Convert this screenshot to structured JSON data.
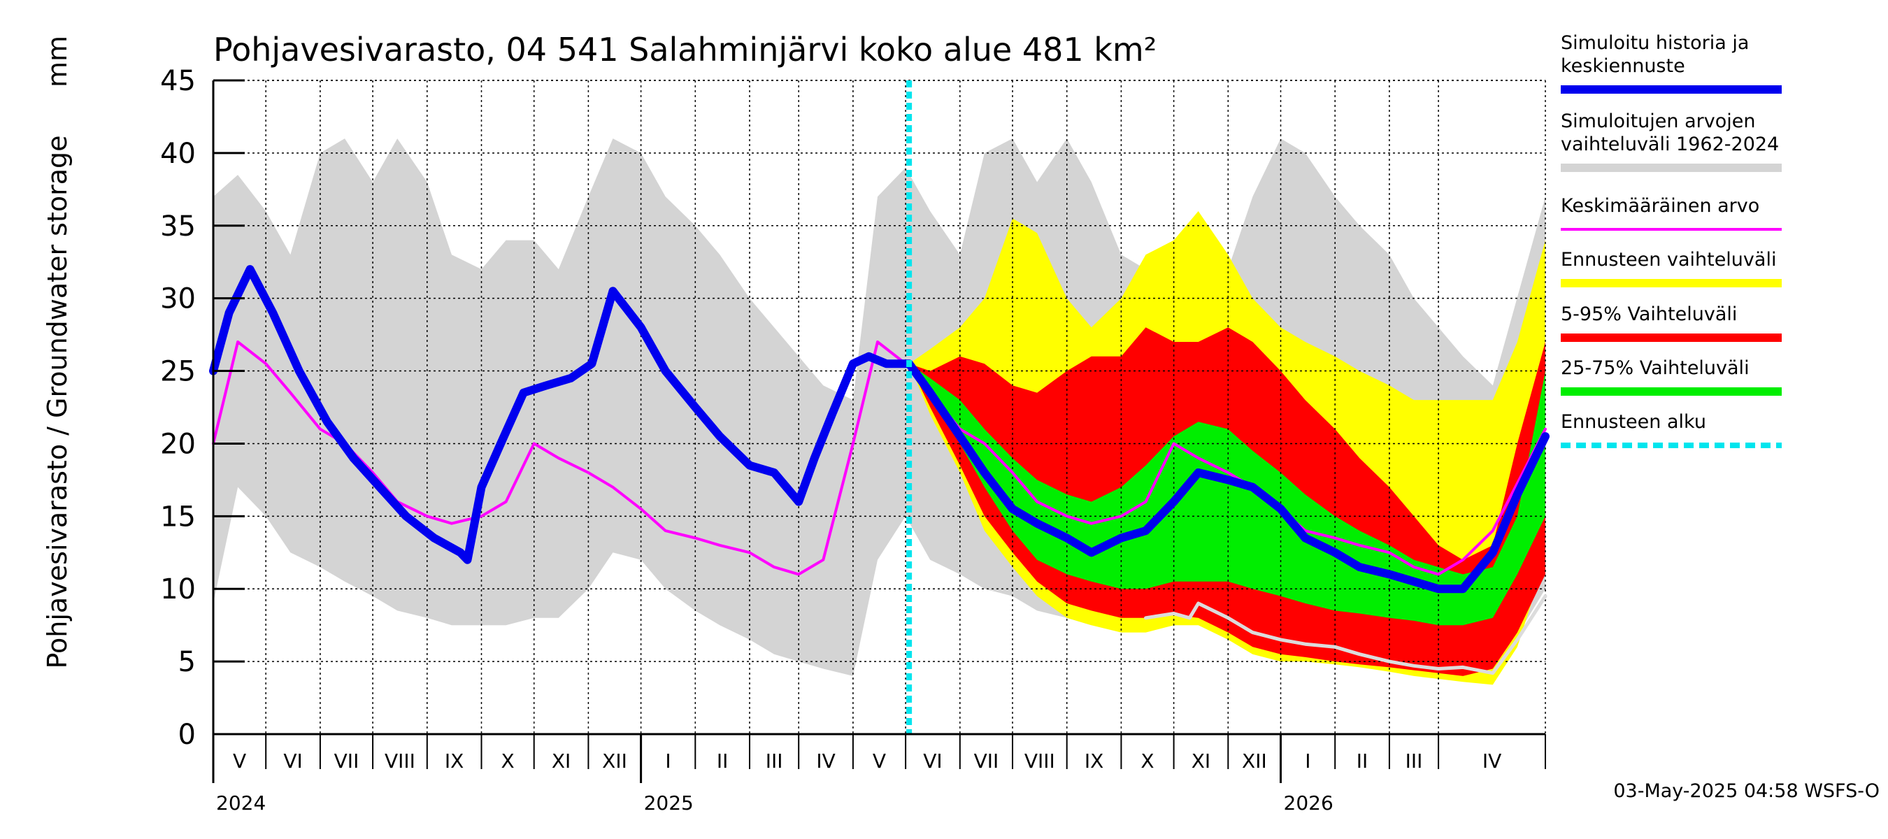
{
  "chart_data": {
    "type": "line",
    "title": "Pohjavesivarasto, 04 541 Salahminjärvi koko alue 481 km²",
    "ylabel": "Pohjavesivarasto / Groundwater storage",
    "yunit": "mm",
    "ylim": [
      0,
      45
    ],
    "yticks": [
      0,
      5,
      10,
      15,
      20,
      25,
      30,
      35,
      40,
      45
    ],
    "xlim": [
      "2024-04-01",
      "2026-05-01"
    ],
    "x_month_labels": [
      {
        "label": "V",
        "start": "2024-04-01"
      },
      {
        "label": "VI",
        "start": "2024-05-01"
      },
      {
        "label": "VII",
        "start": "2024-06-01"
      },
      {
        "label": "VIII",
        "start": "2024-07-01"
      },
      {
        "label": "IX",
        "start": "2024-08-01"
      },
      {
        "label": "X",
        "start": "2024-09-01"
      },
      {
        "label": "XI",
        "start": "2024-10-01"
      },
      {
        "label": "XII",
        "start": "2024-11-01"
      },
      {
        "label": "I",
        "start": "2024-12-01"
      },
      {
        "label": "II",
        "start": "2025-01-01"
      },
      {
        "label": "III",
        "start": "2025-02-01"
      },
      {
        "label": "IV",
        "start": "2025-03-01"
      },
      {
        "label": "V",
        "start": "2025-04-01"
      },
      {
        "label": "VI",
        "start": "2025-05-01"
      },
      {
        "label": "VII",
        "start": "2025-06-01"
      },
      {
        "label": "VIII",
        "start": "2025-07-01"
      },
      {
        "label": "IX",
        "start": "2025-08-01"
      },
      {
        "label": "X",
        "start": "2025-09-01"
      },
      {
        "label": "XI",
        "start": "2025-10-01"
      },
      {
        "label": "XII",
        "start": "2025-11-01"
      },
      {
        "label": "I",
        "start": "2025-12-01"
      },
      {
        "label": "II",
        "start": "2026-01-01"
      },
      {
        "label": "III",
        "start": "2026-02-01"
      },
      {
        "label": "IV",
        "start": "2026-03-01"
      }
    ],
    "x_year_labels": [
      {
        "label": "2024",
        "at": "2024-04-01"
      },
      {
        "label": "2025",
        "at": "2024-12-01"
      },
      {
        "label": "2026",
        "at": "2025-12-01"
      }
    ],
    "forecast_start": "2025-05-03",
    "grid": true,
    "legend_position": "right",
    "legend": [
      {
        "label": "Simuloitu historia ja keskiennuste",
        "lines": [
          "Simuloitu historia ja",
          "keskiennuste"
        ],
        "color": "#0000ee",
        "style": "thick"
      },
      {
        "label": "Simuloitujen arvojen vaihteluväli 1962-2024",
        "lines": [
          "Simuloitujen arvojen",
          "vaihteluväli 1962-2024"
        ],
        "color": "#d4d4d4",
        "style": "band"
      },
      {
        "label": "Keskimääräinen arvo",
        "lines": [
          "Keskimääräinen arvo"
        ],
        "color": "#ff00ff",
        "style": "thin"
      },
      {
        "label": "Ennusteen vaihteluväli",
        "lines": [
          "Ennusteen vaihteluväli"
        ],
        "color": "#ffff00",
        "style": "band"
      },
      {
        "label": "5-95% Vaihteluväli",
        "lines": [
          "5-95% Vaihteluväli"
        ],
        "color": "#ff0000",
        "style": "band"
      },
      {
        "label": "25-75% Vaihteluväli",
        "lines": [
          "25-75% Vaihteluväli"
        ],
        "color": "#00ee00",
        "style": "band"
      },
      {
        "label": "Ennusteen alku",
        "lines": [
          "Ennusteen alku"
        ],
        "color": "#00e5ee",
        "style": "dashed"
      }
    ],
    "series": [
      {
        "name": "Simuloitujen arvojen vaihteluväli 1962-2024",
        "kind": "band",
        "color": "#d4d4d4",
        "x": [
          "2024-04-01",
          "2024-04-15",
          "2024-05-01",
          "2024-05-15",
          "2024-06-01",
          "2024-06-15",
          "2024-07-01",
          "2024-07-15",
          "2024-08-01",
          "2024-08-15",
          "2024-09-01",
          "2024-09-15",
          "2024-10-01",
          "2024-10-15",
          "2024-11-01",
          "2024-11-15",
          "2024-12-01",
          "2024-12-15",
          "2025-01-01",
          "2025-01-15",
          "2025-02-01",
          "2025-02-15",
          "2025-03-01",
          "2025-03-15",
          "2025-04-01",
          "2025-04-15",
          "2025-05-01",
          "2025-05-15",
          "2025-06-01",
          "2025-06-15",
          "2025-07-01",
          "2025-07-15",
          "2025-08-01",
          "2025-08-15",
          "2025-09-01",
          "2025-09-15",
          "2025-10-01",
          "2025-10-15",
          "2025-11-01",
          "2025-11-15",
          "2025-12-01",
          "2025-12-15",
          "2026-01-01",
          "2026-01-15",
          "2026-02-01",
          "2026-02-15",
          "2026-03-01",
          "2026-03-15",
          "2026-04-01",
          "2026-05-01"
        ],
        "lower": [
          9.0,
          17.0,
          15.0,
          12.5,
          11.5,
          10.5,
          9.5,
          8.5,
          8.0,
          7.5,
          7.5,
          7.5,
          8.0,
          8.0,
          10.0,
          12.5,
          12.0,
          10.0,
          8.5,
          7.5,
          6.5,
          5.5,
          5.0,
          4.5,
          4.0,
          12.0,
          15.0,
          12.0,
          11.0,
          10.0,
          9.5,
          8.5,
          8.0,
          7.5,
          7.5,
          7.5,
          8.0,
          8.0,
          10.0,
          12.5,
          12.0,
          10.0,
          8.5,
          7.5,
          6.5,
          5.5,
          5.0,
          4.5,
          4.0,
          10.0
        ],
        "upper": [
          37.0,
          38.5,
          36.0,
          33.0,
          40.0,
          41.0,
          38.0,
          41.0,
          38.0,
          33.0,
          32.0,
          34.0,
          34.0,
          32.0,
          37.0,
          41.0,
          40.0,
          37.0,
          35.0,
          33.0,
          30.0,
          28.0,
          26.0,
          24.0,
          23.0,
          37.0,
          39.0,
          36.0,
          33.0,
          40.0,
          41.0,
          38.0,
          41.0,
          38.0,
          33.0,
          32.0,
          34.0,
          34.0,
          32.0,
          37.0,
          41.0,
          40.0,
          37.0,
          35.0,
          33.0,
          30.0,
          28.0,
          26.0,
          24.0,
          37.0
        ]
      },
      {
        "name": "Ennusteen vaihteluväli",
        "kind": "band",
        "color": "#ffff00",
        "x": [
          "2025-05-03",
          "2025-05-15",
          "2025-06-01",
          "2025-06-15",
          "2025-07-01",
          "2025-07-15",
          "2025-08-01",
          "2025-08-15",
          "2025-09-01",
          "2025-09-15",
          "2025-10-01",
          "2025-10-15",
          "2025-11-01",
          "2025-11-15",
          "2025-12-01",
          "2025-12-15",
          "2026-01-01",
          "2026-01-15",
          "2026-02-01",
          "2026-02-15",
          "2026-03-01",
          "2026-03-15",
          "2026-04-01",
          "2026-04-15",
          "2026-05-01"
        ],
        "lower": [
          25.5,
          22.0,
          18.0,
          14.0,
          11.5,
          9.5,
          8.0,
          7.5,
          7.0,
          7.0,
          7.5,
          7.5,
          6.5,
          5.5,
          5.0,
          5.0,
          4.8,
          4.6,
          4.3,
          4.0,
          3.8,
          3.6,
          3.4,
          6.0,
          12.0
        ],
        "upper": [
          25.5,
          26.5,
          28.0,
          30.0,
          35.5,
          34.5,
          30.0,
          28.0,
          30.0,
          33.0,
          34.0,
          36.0,
          33.0,
          30.0,
          28.0,
          27.0,
          26.0,
          25.0,
          24.0,
          23.0,
          23.0,
          23.0,
          23.0,
          27.0,
          34.0
        ]
      },
      {
        "name": "5-95% Vaihteluväli",
        "kind": "band",
        "color": "#ff0000",
        "x": [
          "2025-05-03",
          "2025-05-15",
          "2025-06-01",
          "2025-06-15",
          "2025-07-01",
          "2025-07-15",
          "2025-08-01",
          "2025-08-15",
          "2025-09-01",
          "2025-09-15",
          "2025-10-01",
          "2025-10-15",
          "2025-11-01",
          "2025-11-15",
          "2025-12-01",
          "2025-12-15",
          "2026-01-01",
          "2026-01-15",
          "2026-02-01",
          "2026-02-15",
          "2026-03-01",
          "2026-03-15",
          "2026-04-01",
          "2026-04-15",
          "2026-05-01"
        ],
        "lower": [
          25.5,
          22.5,
          18.5,
          15.0,
          12.5,
          10.5,
          9.0,
          8.5,
          8.0,
          8.0,
          8.2,
          8.0,
          7.0,
          6.0,
          5.5,
          5.3,
          5.0,
          4.8,
          4.6,
          4.4,
          4.2,
          4.0,
          4.5,
          7.0,
          11.0
        ],
        "upper": [
          25.5,
          25.0,
          26.0,
          25.5,
          24.0,
          23.5,
          25.0,
          26.0,
          26.0,
          28.0,
          27.0,
          27.0,
          28.0,
          27.0,
          25.0,
          23.0,
          21.0,
          19.0,
          17.0,
          15.0,
          13.0,
          12.0,
          13.0,
          20.0,
          27.0
        ]
      },
      {
        "name": "25-75% Vaihteluväli",
        "kind": "band",
        "color": "#00ee00",
        "x": [
          "2025-05-03",
          "2025-05-15",
          "2025-06-01",
          "2025-06-15",
          "2025-07-01",
          "2025-07-15",
          "2025-08-01",
          "2025-08-15",
          "2025-09-01",
          "2025-09-15",
          "2025-10-01",
          "2025-10-15",
          "2025-11-01",
          "2025-11-15",
          "2025-12-01",
          "2025-12-15",
          "2026-01-01",
          "2026-01-15",
          "2026-02-01",
          "2026-02-15",
          "2026-03-01",
          "2026-03-15",
          "2026-04-01",
          "2026-04-15",
          "2026-05-01"
        ],
        "lower": [
          25.5,
          23.0,
          20.0,
          17.0,
          14.0,
          12.0,
          11.0,
          10.5,
          10.0,
          10.0,
          10.5,
          10.5,
          10.5,
          10.0,
          9.5,
          9.0,
          8.5,
          8.3,
          8.0,
          7.8,
          7.5,
          7.5,
          8.0,
          11.0,
          15.0
        ],
        "upper": [
          25.5,
          24.5,
          23.0,
          21.0,
          19.0,
          17.5,
          16.5,
          16.0,
          17.0,
          18.5,
          20.5,
          21.5,
          21.0,
          19.5,
          18.0,
          16.5,
          15.0,
          14.0,
          13.0,
          12.0,
          11.5,
          11.0,
          11.5,
          15.0,
          25.0
        ]
      },
      {
        "name": "Keskimääräinen arvo",
        "kind": "line",
        "color": "#ff00ff",
        "x": [
          "2024-04-01",
          "2024-04-15",
          "2024-05-01",
          "2024-05-15",
          "2024-06-01",
          "2024-06-15",
          "2024-07-01",
          "2024-07-15",
          "2024-08-01",
          "2024-08-15",
          "2024-09-01",
          "2024-09-15",
          "2024-10-01",
          "2024-10-15",
          "2024-11-01",
          "2024-11-15",
          "2024-12-01",
          "2024-12-15",
          "2025-01-01",
          "2025-01-15",
          "2025-02-01",
          "2025-02-15",
          "2025-03-01",
          "2025-03-15",
          "2025-04-01",
          "2025-04-15",
          "2025-05-01",
          "2025-05-15",
          "2025-06-01",
          "2025-06-15",
          "2025-07-01",
          "2025-07-15",
          "2025-08-01",
          "2025-08-15",
          "2025-09-01",
          "2025-09-15",
          "2025-10-01",
          "2025-10-15",
          "2025-11-01",
          "2025-11-15",
          "2025-12-01",
          "2025-12-15",
          "2026-01-01",
          "2026-01-15",
          "2026-02-01",
          "2026-02-15",
          "2026-03-01",
          "2026-03-15",
          "2026-04-01",
          "2026-05-01"
        ],
        "y": [
          20.0,
          27.0,
          25.5,
          23.5,
          21.0,
          20.0,
          18.0,
          16.0,
          15.0,
          14.5,
          15.0,
          16.0,
          20.0,
          19.0,
          18.0,
          17.0,
          15.5,
          14.0,
          13.5,
          13.0,
          12.5,
          11.5,
          11.0,
          12.0,
          20.0,
          27.0,
          25.5,
          23.5,
          21.0,
          20.0,
          18.0,
          16.0,
          15.0,
          14.5,
          15.0,
          16.0,
          20.0,
          19.0,
          18.0,
          17.0,
          15.5,
          14.0,
          13.5,
          13.0,
          12.5,
          11.5,
          11.0,
          12.0,
          14.0,
          21.0
        ]
      },
      {
        "name": "Simuloitu historia ja keskiennuste",
        "kind": "line",
        "color": "#0000ee",
        "x": [
          "2024-04-01",
          "2024-04-10",
          "2024-04-22",
          "2024-05-05",
          "2024-05-20",
          "2024-06-05",
          "2024-06-20",
          "2024-07-05",
          "2024-07-20",
          "2024-08-05",
          "2024-08-20",
          "2024-08-24",
          "2024-09-01",
          "2024-09-12",
          "2024-09-25",
          "2024-10-08",
          "2024-10-22",
          "2024-11-03",
          "2024-11-15",
          "2024-12-01",
          "2024-12-15",
          "2025-01-01",
          "2025-01-15",
          "2025-02-01",
          "2025-02-15",
          "2025-03-01",
          "2025-03-10",
          "2025-03-20",
          "2025-04-01",
          "2025-04-10",
          "2025-04-20",
          "2025-05-03",
          "2025-05-15",
          "2025-06-01",
          "2025-06-15",
          "2025-07-01",
          "2025-07-15",
          "2025-08-01",
          "2025-08-15",
          "2025-09-01",
          "2025-09-15",
          "2025-10-01",
          "2025-10-15",
          "2025-11-01",
          "2025-11-15",
          "2025-12-01",
          "2025-12-15",
          "2026-01-01",
          "2026-01-15",
          "2026-02-01",
          "2026-02-15",
          "2026-03-01",
          "2026-03-15",
          "2026-04-01",
          "2026-04-15",
          "2026-05-01"
        ],
        "y": [
          25.0,
          29.0,
          32.0,
          29.0,
          25.0,
          21.5,
          19.0,
          17.0,
          15.0,
          13.5,
          12.5,
          12.0,
          17.0,
          20.0,
          23.5,
          24.0,
          24.5,
          25.5,
          30.5,
          28.0,
          25.0,
          22.5,
          20.5,
          18.5,
          18.0,
          16.0,
          19.0,
          22.0,
          25.5,
          26.0,
          25.5,
          25.5,
          23.5,
          20.5,
          18.0,
          15.5,
          14.5,
          13.5,
          12.5,
          13.5,
          14.0,
          16.0,
          18.0,
          17.5,
          17.0,
          15.5,
          13.5,
          12.5,
          11.5,
          11.0,
          10.5,
          10.0,
          10.0,
          12.5,
          16.5,
          20.5
        ]
      },
      {
        "name": "Ennusteen minimi",
        "kind": "line",
        "color": "#dcdcdc",
        "x": [
          "2025-09-15",
          "2025-10-01",
          "2025-10-10",
          "2025-10-15",
          "2025-11-01",
          "2025-11-15",
          "2025-12-01",
          "2025-12-15",
          "2026-01-01",
          "2026-01-15",
          "2026-02-01",
          "2026-02-15",
          "2026-03-01",
          "2026-03-15",
          "2026-04-01",
          "2026-04-15",
          "2026-05-01"
        ],
        "y": [
          8.0,
          8.3,
          8.0,
          9.0,
          8.0,
          7.0,
          6.5,
          6.2,
          6.0,
          5.5,
          5.0,
          4.7,
          4.5,
          4.6,
          4.2,
          6.5,
          9.5
        ]
      }
    ]
  },
  "footer": {
    "timestamp": "03-May-2025 04:58 WSFS-O"
  }
}
